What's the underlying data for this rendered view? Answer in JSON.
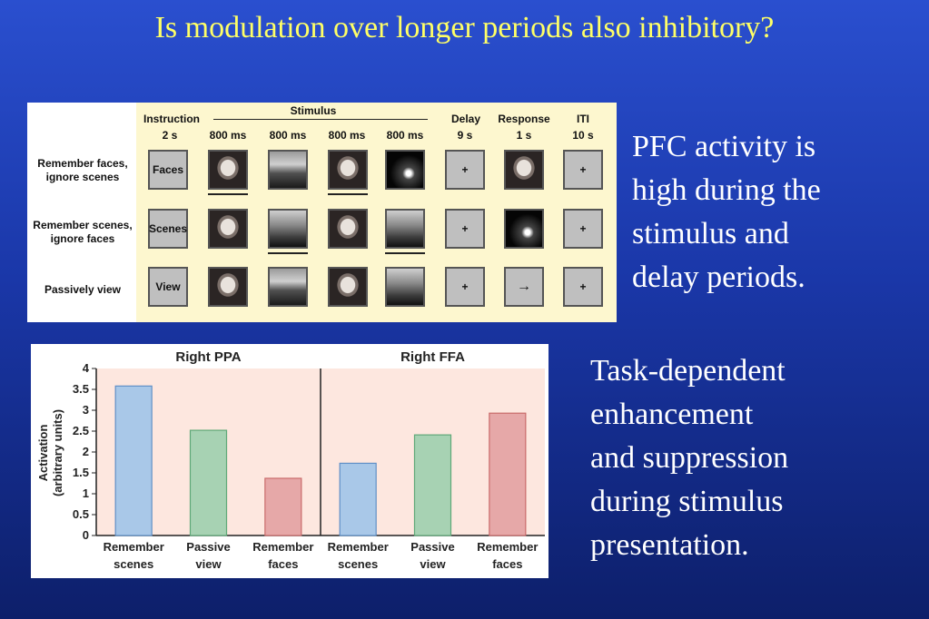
{
  "slide": {
    "title": "Is modulation over longer periods also inhibitory?",
    "text1": [
      "PFC activity is",
      "high during the",
      "stimulus and",
      "delay periods."
    ],
    "text2": [
      "Task-dependent",
      "enhancement",
      "and suppression",
      "during stimulus",
      "presentation."
    ]
  },
  "design": {
    "headers": {
      "instruction": "Instruction",
      "stimulus": "Stimulus",
      "delay": "Delay",
      "response": "Response",
      "iti": "ITI"
    },
    "durations": [
      "2 s",
      "800 ms",
      "800 ms",
      "800 ms",
      "800 ms",
      "9 s",
      "1 s",
      "10 s"
    ],
    "rows": [
      {
        "label": [
          "Remember faces,",
          "ignore scenes"
        ],
        "instruction": "Faces",
        "delay": "+",
        "iti": "+",
        "response": ""
      },
      {
        "label": [
          "Remember scenes,",
          "ignore faces"
        ],
        "instruction": "Scenes",
        "delay": "+",
        "iti": "+",
        "response": ""
      },
      {
        "label": [
          "Passively view"
        ],
        "instruction": "View",
        "delay": "+",
        "iti": "+",
        "response": "→"
      }
    ]
  },
  "chart_data": [
    {
      "type": "bar",
      "title": "Right PPA",
      "ylabel": "Activation\n(arbitrary units)",
      "ylim": [
        0,
        4
      ],
      "yticks": [
        "0",
        "0.5",
        "1",
        "1.5",
        "2",
        "2.5",
        "3",
        "3.5",
        "4"
      ],
      "categories": [
        [
          "Remember",
          "scenes"
        ],
        [
          "Passive",
          "view"
        ],
        [
          "Remember",
          "faces"
        ]
      ],
      "values": [
        3.58,
        2.52,
        1.37
      ],
      "colors": [
        "#a9c8e8",
        "#a7d2b3",
        "#e6a8a8"
      ]
    },
    {
      "type": "bar",
      "title": "Right FFA",
      "ylim": [
        0,
        4
      ],
      "categories": [
        [
          "Remember",
          "scenes"
        ],
        [
          "Passive",
          "view"
        ],
        [
          "Remember",
          "faces"
        ]
      ],
      "values": [
        1.73,
        2.41,
        2.93
      ],
      "colors": [
        "#a9c8e8",
        "#a7d2b3",
        "#e6a8a8"
      ]
    }
  ]
}
